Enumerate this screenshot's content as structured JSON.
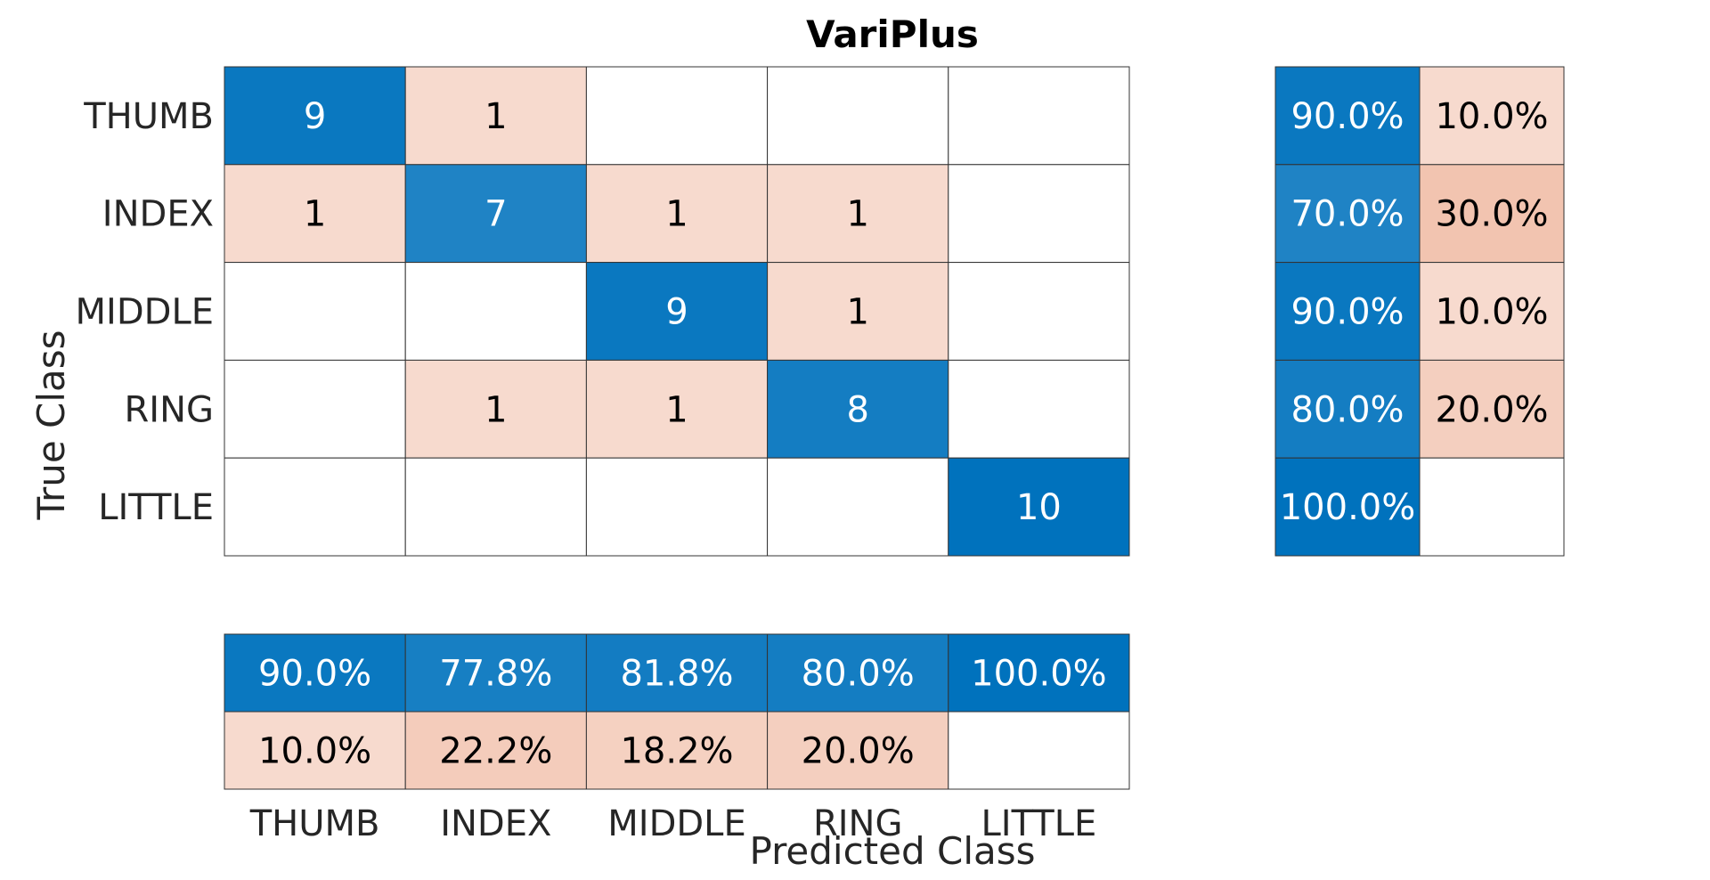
{
  "chart_data": {
    "type": "heatmap",
    "title": "VariPlus",
    "xlabel": "Predicted Class",
    "ylabel": "True Class",
    "classes": [
      "THUMB",
      "INDEX",
      "MIDDLE",
      "RING",
      "LITTLE"
    ],
    "matrix": [
      [
        9,
        1,
        0,
        0,
        0
      ],
      [
        1,
        7,
        1,
        1,
        0
      ],
      [
        0,
        0,
        9,
        1,
        0
      ],
      [
        0,
        1,
        1,
        8,
        0
      ],
      [
        0,
        0,
        0,
        0,
        10
      ]
    ],
    "row_summary": [
      [
        "90.0%",
        "10.0%"
      ],
      [
        "70.0%",
        "30.0%"
      ],
      [
        "90.0%",
        "10.0%"
      ],
      [
        "80.0%",
        "20.0%"
      ],
      [
        "100.0%",
        ""
      ]
    ],
    "column_summary": [
      [
        "90.0%",
        "77.8%",
        "81.8%",
        "80.0%",
        "100.0%"
      ],
      [
        "10.0%",
        "22.2%",
        "18.2%",
        "20.0%",
        ""
      ]
    ],
    "colors": {
      "correct": "#0072bd",
      "incorrect": "#d95319",
      "blank": "#ffffff",
      "grid": "#333333",
      "text": "#262626"
    }
  }
}
